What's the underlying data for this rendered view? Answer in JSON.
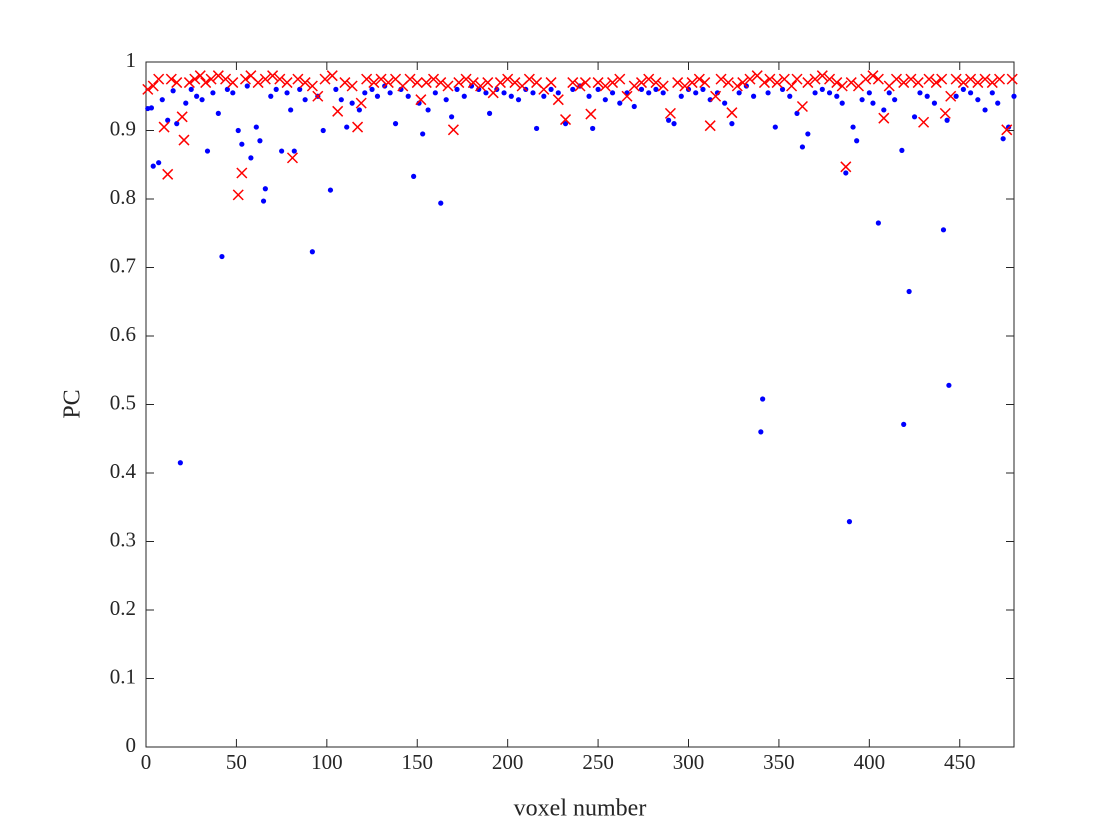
{
  "chart_data": {
    "type": "scatter",
    "xlabel": "voxel number",
    "ylabel": "PC",
    "xlim": [
      0,
      480
    ],
    "ylim": [
      0,
      1
    ],
    "xticks": [
      0,
      50,
      100,
      150,
      200,
      250,
      300,
      350,
      400,
      450
    ],
    "yticks": [
      0,
      0.1,
      0.2,
      0.3,
      0.4,
      0.5,
      0.6,
      0.7,
      0.8,
      0.9,
      1
    ],
    "grid": false,
    "series": [
      {
        "marker": "dot",
        "color": "#0000ff",
        "x": [
          1,
          3,
          4,
          7,
          9,
          12,
          15,
          17,
          19,
          22,
          25,
          28,
          31,
          34,
          37,
          40,
          42,
          45,
          48,
          51,
          53,
          56,
          58,
          61,
          63,
          65,
          66,
          69,
          72,
          75,
          78,
          80,
          82,
          85,
          88,
          92,
          95,
          98,
          102,
          105,
          108,
          111,
          114,
          118,
          121,
          125,
          128,
          132,
          135,
          138,
          141,
          145,
          148,
          151,
          153,
          156,
          160,
          163,
          166,
          169,
          172,
          176,
          180,
          184,
          188,
          190,
          194,
          198,
          202,
          206,
          210,
          214,
          216,
          220,
          224,
          228,
          232,
          236,
          240,
          245,
          247,
          250,
          254,
          258,
          262,
          266,
          270,
          274,
          278,
          282,
          286,
          289,
          292,
          296,
          300,
          304,
          308,
          312,
          316,
          320,
          324,
          328,
          332,
          336,
          340,
          341,
          344,
          348,
          352,
          356,
          360,
          363,
          366,
          370,
          374,
          378,
          382,
          385,
          387,
          389,
          391,
          393,
          396,
          400,
          402,
          405,
          408,
          411,
          414,
          418,
          419,
          422,
          425,
          428,
          432,
          436,
          441,
          443,
          444,
          448,
          452,
          456,
          460,
          464,
          468,
          471,
          474,
          477,
          480
        ],
        "values": [
          0.932,
          0.933,
          0.848,
          0.853,
          0.945,
          0.915,
          0.958,
          0.91,
          0.415,
          0.94,
          0.96,
          0.95,
          0.945,
          0.87,
          0.955,
          0.925,
          0.716,
          0.96,
          0.955,
          0.9,
          0.88,
          0.965,
          0.86,
          0.905,
          0.885,
          0.797,
          0.815,
          0.95,
          0.96,
          0.87,
          0.955,
          0.93,
          0.87,
          0.96,
          0.945,
          0.723,
          0.95,
          0.9,
          0.813,
          0.96,
          0.945,
          0.905,
          0.94,
          0.93,
          0.955,
          0.96,
          0.95,
          0.965,
          0.955,
          0.91,
          0.96,
          0.95,
          0.833,
          0.94,
          0.895,
          0.93,
          0.955,
          0.794,
          0.945,
          0.92,
          0.96,
          0.95,
          0.965,
          0.96,
          0.955,
          0.925,
          0.96,
          0.955,
          0.95,
          0.945,
          0.96,
          0.955,
          0.903,
          0.95,
          0.96,
          0.955,
          0.91,
          0.96,
          0.965,
          0.95,
          0.903,
          0.96,
          0.945,
          0.955,
          0.94,
          0.955,
          0.935,
          0.96,
          0.955,
          0.96,
          0.955,
          0.915,
          0.91,
          0.95,
          0.96,
          0.955,
          0.96,
          0.945,
          0.955,
          0.94,
          0.91,
          0.955,
          0.965,
          0.95,
          0.46,
          0.508,
          0.955,
          0.905,
          0.96,
          0.95,
          0.925,
          0.876,
          0.895,
          0.955,
          0.96,
          0.955,
          0.95,
          0.94,
          0.838,
          0.329,
          0.905,
          0.885,
          0.945,
          0.955,
          0.94,
          0.765,
          0.93,
          0.955,
          0.945,
          0.871,
          0.471,
          0.665,
          0.92,
          0.955,
          0.95,
          0.94,
          0.755,
          0.915,
          0.528,
          0.95,
          0.96,
          0.955,
          0.945,
          0.93,
          0.955,
          0.94,
          0.888,
          0.905,
          0.95
        ]
      },
      {
        "marker": "x",
        "color": "#ff0000",
        "x": [
          1,
          4,
          7,
          10,
          12,
          14,
          17,
          20,
          21,
          24,
          27,
          30,
          33,
          36,
          40,
          44,
          48,
          51,
          53,
          55,
          58,
          62,
          66,
          70,
          74,
          78,
          81,
          84,
          88,
          92,
          95,
          99,
          103,
          106,
          110,
          114,
          117,
          119,
          122,
          126,
          130,
          134,
          138,
          142,
          146,
          150,
          152,
          155,
          159,
          163,
          167,
          170,
          173,
          177,
          181,
          185,
          189,
          192,
          196,
          200,
          204,
          208,
          212,
          216,
          220,
          224,
          228,
          232,
          236,
          240,
          243,
          246,
          250,
          254,
          258,
          262,
          266,
          270,
          274,
          278,
          282,
          286,
          290,
          294,
          298,
          302,
          306,
          309,
          312,
          315,
          318,
          322,
          324,
          327,
          330,
          334,
          338,
          342,
          345,
          349,
          353,
          357,
          360,
          363,
          366,
          370,
          374,
          378,
          382,
          385,
          387,
          390,
          394,
          398,
          402,
          405,
          408,
          411,
          415,
          419,
          423,
          427,
          430,
          433,
          437,
          440,
          442,
          445,
          448,
          452,
          456,
          460,
          464,
          468,
          472,
          476,
          479
        ],
        "values": [
          0.96,
          0.965,
          0.975,
          0.905,
          0.836,
          0.975,
          0.97,
          0.92,
          0.886,
          0.97,
          0.975,
          0.98,
          0.97,
          0.975,
          0.98,
          0.975,
          0.97,
          0.806,
          0.838,
          0.975,
          0.98,
          0.97,
          0.975,
          0.98,
          0.975,
          0.97,
          0.86,
          0.975,
          0.97,
          0.965,
          0.95,
          0.975,
          0.98,
          0.928,
          0.97,
          0.965,
          0.905,
          0.94,
          0.975,
          0.97,
          0.975,
          0.97,
          0.975,
          0.965,
          0.975,
          0.97,
          0.945,
          0.97,
          0.975,
          0.97,
          0.965,
          0.901,
          0.97,
          0.975,
          0.97,
          0.965,
          0.97,
          0.955,
          0.97,
          0.975,
          0.97,
          0.965,
          0.975,
          0.97,
          0.96,
          0.97,
          0.945,
          0.916,
          0.97,
          0.965,
          0.97,
          0.924,
          0.97,
          0.965,
          0.97,
          0.975,
          0.95,
          0.965,
          0.97,
          0.975,
          0.97,
          0.965,
          0.925,
          0.97,
          0.965,
          0.97,
          0.975,
          0.97,
          0.907,
          0.95,
          0.975,
          0.97,
          0.926,
          0.965,
          0.97,
          0.975,
          0.98,
          0.97,
          0.975,
          0.97,
          0.975,
          0.965,
          0.975,
          0.935,
          0.97,
          0.975,
          0.98,
          0.975,
          0.97,
          0.965,
          0.847,
          0.97,
          0.965,
          0.975,
          0.98,
          0.975,
          0.918,
          0.965,
          0.975,
          0.97,
          0.975,
          0.97,
          0.912,
          0.975,
          0.97,
          0.975,
          0.925,
          0.95,
          0.975,
          0.97,
          0.975,
          0.97,
          0.975,
          0.97,
          0.975,
          0.901,
          0.975
        ]
      }
    ]
  }
}
